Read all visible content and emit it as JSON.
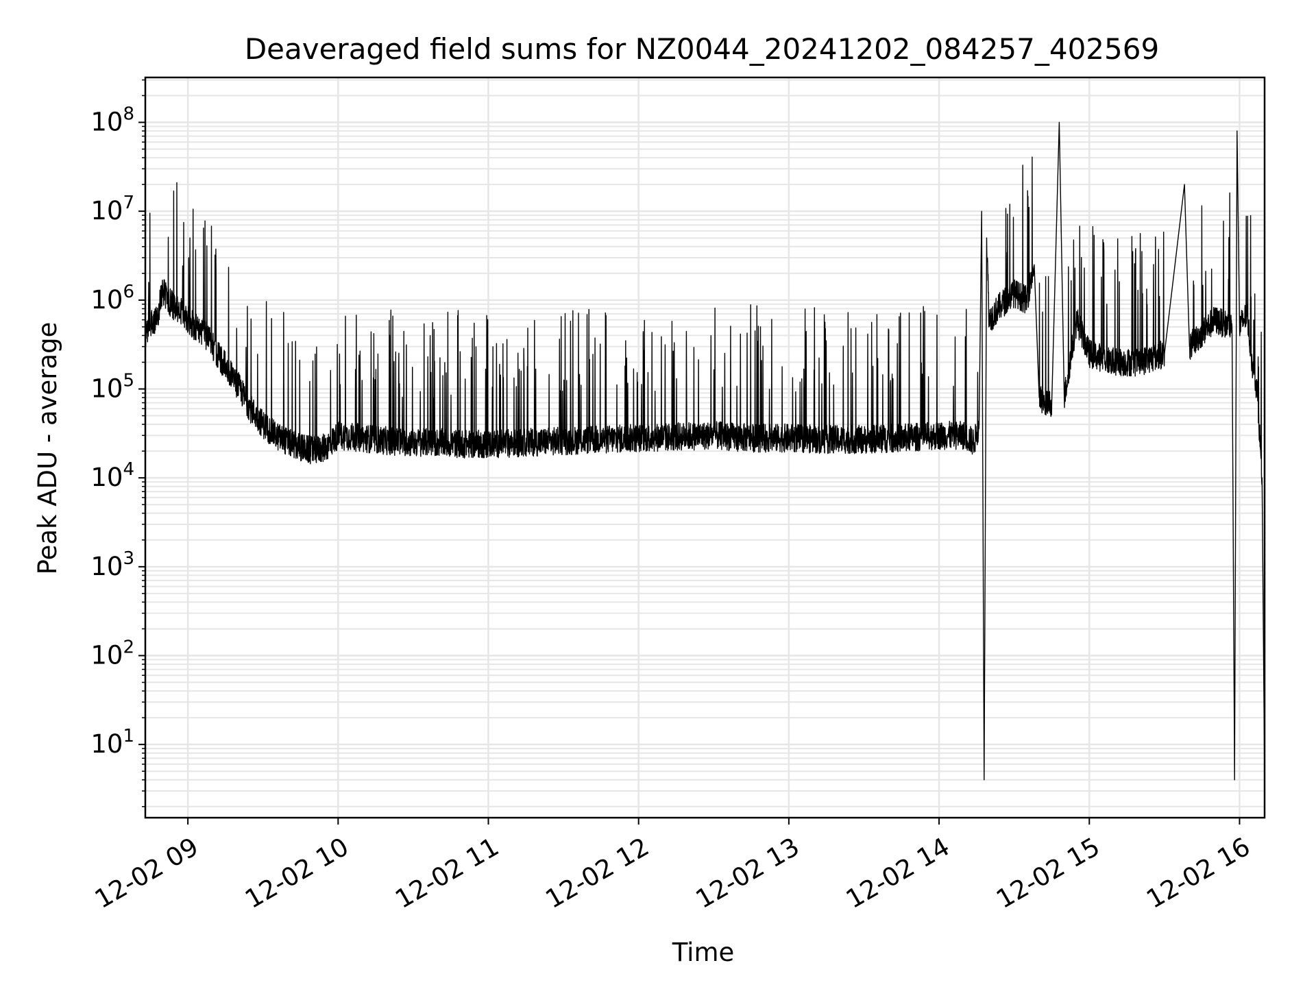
{
  "chart_data": {
    "type": "line",
    "title": "Deaveraged field sums for NZ0044_20241202_084257_402569",
    "xlabel": "Time",
    "ylabel": "Peak ADU - average",
    "yscale": "log",
    "ylim": [
      1.5,
      320000000
    ],
    "xlim": [
      "2024-12-02 08:43",
      "2024-12-02 16:10"
    ],
    "grid": true,
    "line_color": "#000000",
    "grid_color": "#e6e6e6",
    "x_ticks": [
      {
        "value": "2024-12-02 09:00",
        "label": "12-02 09"
      },
      {
        "value": "2024-12-02 10:00",
        "label": "12-02 10"
      },
      {
        "value": "2024-12-02 11:00",
        "label": "12-02 11"
      },
      {
        "value": "2024-12-02 12:00",
        "label": "12-02 12"
      },
      {
        "value": "2024-12-02 13:00",
        "label": "12-02 13"
      },
      {
        "value": "2024-12-02 14:00",
        "label": "12-02 14"
      },
      {
        "value": "2024-12-02 15:00",
        "label": "12-02 15"
      },
      {
        "value": "2024-12-02 16:00",
        "label": "12-02 16"
      }
    ],
    "y_ticks": [
      {
        "value": 10,
        "base": "10",
        "exp": "1"
      },
      {
        "value": 100,
        "base": "10",
        "exp": "2"
      },
      {
        "value": 1000,
        "base": "10",
        "exp": "3"
      },
      {
        "value": 10000,
        "base": "10",
        "exp": "4"
      },
      {
        "value": 100000,
        "base": "10",
        "exp": "5"
      },
      {
        "value": 1000000,
        "base": "10",
        "exp": "6"
      },
      {
        "value": 10000000,
        "base": "10",
        "exp": "7"
      },
      {
        "value": 100000000,
        "base": "10",
        "exp": "8"
      }
    ],
    "series": [
      {
        "x": [
          "2024-12-02 08:43",
          "2024-12-02 08:45",
          "2024-12-02 08:48",
          "2024-12-02 08:50",
          "2024-12-02 08:52",
          "2024-12-02 08:55",
          "2024-12-02 08:58",
          "2024-12-02 09:00",
          "2024-12-02 09:03",
          "2024-12-02 09:06",
          "2024-12-02 09:10",
          "2024-12-02 09:15",
          "2024-12-02 09:20",
          "2024-12-02 09:25",
          "2024-12-02 09:30",
          "2024-12-02 09:35",
          "2024-12-02 09:40",
          "2024-12-02 09:45",
          "2024-12-02 09:50",
          "2024-12-02 09:55",
          "2024-12-02 10:00",
          "2024-12-02 10:10",
          "2024-12-02 10:20",
          "2024-12-02 10:30",
          "2024-12-02 10:40",
          "2024-12-02 10:50",
          "2024-12-02 11:00",
          "2024-12-02 11:15",
          "2024-12-02 11:30",
          "2024-12-02 11:45",
          "2024-12-02 12:00",
          "2024-12-02 12:15",
          "2024-12-02 12:30",
          "2024-12-02 12:45",
          "2024-12-02 13:00",
          "2024-12-02 13:15",
          "2024-12-02 13:30",
          "2024-12-02 13:45",
          "2024-12-02 14:00",
          "2024-12-02 14:10",
          "2024-12-02 14:14",
          "2024-12-02 14:16",
          "2024-12-02 14:17",
          "2024-12-02 14:18",
          "2024-12-02 14:19",
          "2024-12-02 14:20",
          "2024-12-02 14:25",
          "2024-12-02 14:30",
          "2024-12-02 14:35",
          "2024-12-02 14:38",
          "2024-12-02 14:40",
          "2024-12-02 14:42",
          "2024-12-02 14:45",
          "2024-12-02 14:48",
          "2024-12-02 14:50",
          "2024-12-02 14:55",
          "2024-12-02 15:00",
          "2024-12-02 15:10",
          "2024-12-02 15:20",
          "2024-12-02 15:30",
          "2024-12-02 15:38",
          "2024-12-02 15:40",
          "2024-12-02 15:50",
          "2024-12-02 15:57",
          "2024-12-02 15:58",
          "2024-12-02 15:59",
          "2024-12-02 16:00",
          "2024-12-02 16:03",
          "2024-12-02 16:05",
          "2024-12-02 16:07",
          "2024-12-02 16:09",
          "2024-12-02 16:10"
        ],
        "y": [
          400000,
          500000,
          700000,
          1300000,
          1000000,
          800000,
          700000,
          600000,
          500000,
          450000,
          300000,
          180000,
          110000,
          60000,
          40000,
          30000,
          25000,
          22000,
          20000,
          22000,
          30000,
          28000,
          26000,
          25000,
          25000,
          24000,
          24000,
          25000,
          26000,
          27000,
          28000,
          29000,
          30000,
          28000,
          28000,
          27000,
          27000,
          28000,
          30000,
          30000,
          25000,
          40000,
          10000000,
          4,
          5000000,
          600000,
          900000,
          1200000,
          1000000,
          2500000,
          80000,
          65000,
          70000,
          100000000,
          80000,
          600000,
          250000,
          200000,
          200000,
          250000,
          20000000,
          300000,
          600000,
          500000,
          4,
          80000000,
          500000,
          700000,
          200000,
          100000,
          10000,
          4
        ]
      }
    ]
  }
}
